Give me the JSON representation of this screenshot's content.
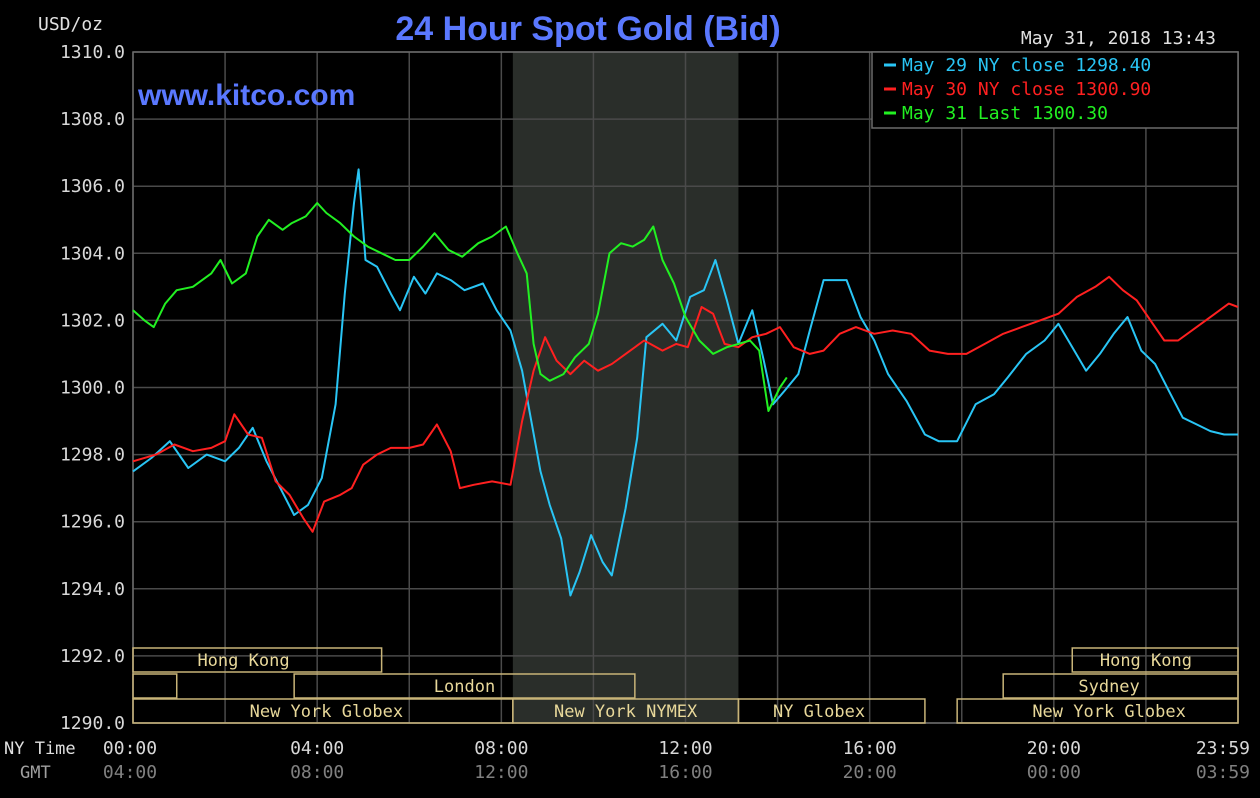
{
  "title": "24 Hour Spot Gold (Bid)",
  "watermark": "www.kitco.com",
  "timestamp": "May 31, 2018 13:43",
  "colors": {
    "background": "#000000",
    "grid": "#4a4a4a",
    "axis_text": "#d8d8d8",
    "gmt_text": "#808080",
    "title": "#5a78ff",
    "session_border": "#c8b478",
    "session_text": "#e8d89a",
    "shade": "#2a2e2a"
  },
  "axes": {
    "y_unit": "USD/oz",
    "x_row1_label": "NY Time",
    "x_row2_label": "GMT",
    "x_ticks_ny": [
      "00:00",
      "04:00",
      "08:00",
      "12:00",
      "16:00",
      "20:00",
      "23:59"
    ],
    "x_ticks_gmt": [
      "04:00",
      "08:00",
      "12:00",
      "16:00",
      "20:00",
      "00:00",
      "03:59"
    ],
    "y_ticks": [
      "1310.0",
      "1308.0",
      "1306.0",
      "1304.0",
      "1302.0",
      "1300.0",
      "1298.0",
      "1296.0",
      "1294.0",
      "1292.0",
      "1290.0"
    ]
  },
  "legend": [
    {
      "text": "May 29 NY close 1298.40",
      "color": "#29c5f5"
    },
    {
      "text": "May 30 NY close 1300.90",
      "color": "#ff2020"
    },
    {
      "text": "May 31 Last 1300.30",
      "color": "#22f022"
    }
  ],
  "sessions": [
    {
      "label": "Hong Kong",
      "row": 0,
      "start": 0,
      "end": 5.4,
      "label_x": 2.4
    },
    {
      "label": "Hong Kong",
      "row": 0,
      "start": 20.4,
      "end": 24,
      "label_x": 22
    },
    {
      "label": "",
      "row": 1,
      "start": 0,
      "end": 0.95,
      "label_x": 0
    },
    {
      "label": "London",
      "row": 1,
      "start": 3.5,
      "end": 10.9,
      "label_x": 7.2
    },
    {
      "label": "Sydney",
      "row": 1,
      "start": 18.9,
      "end": 24,
      "label_x": 21.2
    },
    {
      "label": "New York Globex",
      "row": 2,
      "start": 0,
      "end": 8.25,
      "label_x": 4.2
    },
    {
      "label": "New York NYMEX",
      "row": 2,
      "start": 8.25,
      "end": 13.15,
      "label_x": 10.7
    },
    {
      "label": "NY Globex",
      "row": 2,
      "start": 13.15,
      "end": 17.2,
      "label_x": 14.9
    },
    {
      "label": "New York Globex",
      "row": 2,
      "start": 17.9,
      "end": 24,
      "label_x": 21.2
    }
  ],
  "chart_data": {
    "type": "line",
    "title": "24 Hour Spot Gold (Bid)",
    "xlabel": "NY Time",
    "ylabel": "USD/oz",
    "xlim": [
      0,
      24
    ],
    "ylim": [
      1290,
      1310
    ],
    "grid": true,
    "legend_position": "top-right",
    "shaded_region": [
      8.25,
      13.15
    ],
    "series": [
      {
        "name": "May 29 NY close 1298.40",
        "color": "#29c5f5",
        "points": [
          [
            0,
            1297.5
          ],
          [
            0.4,
            1297.9
          ],
          [
            0.8,
            1298.4
          ],
          [
            1.2,
            1297.6
          ],
          [
            1.6,
            1298.0
          ],
          [
            2,
            1297.8
          ],
          [
            2.3,
            1298.2
          ],
          [
            2.6,
            1298.8
          ],
          [
            2.9,
            1297.8
          ],
          [
            3.2,
            1297.0
          ],
          [
            3.5,
            1296.2
          ],
          [
            3.8,
            1296.5
          ],
          [
            4.1,
            1297.3
          ],
          [
            4.4,
            1299.5
          ],
          [
            4.6,
            1302.8
          ],
          [
            4.8,
            1305.5
          ],
          [
            4.9,
            1306.5
          ],
          [
            5.05,
            1303.8
          ],
          [
            5.3,
            1303.6
          ],
          [
            5.6,
            1302.8
          ],
          [
            5.8,
            1302.3
          ],
          [
            6.1,
            1303.3
          ],
          [
            6.35,
            1302.8
          ],
          [
            6.6,
            1303.4
          ],
          [
            6.9,
            1303.2
          ],
          [
            7.2,
            1302.9
          ],
          [
            7.6,
            1303.1
          ],
          [
            7.9,
            1302.3
          ],
          [
            8.2,
            1301.7
          ],
          [
            8.45,
            1300.5
          ],
          [
            8.65,
            1299.0
          ],
          [
            8.85,
            1297.5
          ],
          [
            9.05,
            1296.5
          ],
          [
            9.3,
            1295.5
          ],
          [
            9.5,
            1293.8
          ],
          [
            9.7,
            1294.5
          ],
          [
            9.95,
            1295.6
          ],
          [
            10.2,
            1294.8
          ],
          [
            10.4,
            1294.4
          ],
          [
            10.7,
            1296.4
          ],
          [
            10.95,
            1298.5
          ],
          [
            11.15,
            1301.5
          ],
          [
            11.5,
            1301.9
          ],
          [
            11.8,
            1301.4
          ],
          [
            12.1,
            1302.7
          ],
          [
            12.4,
            1302.9
          ],
          [
            12.65,
            1303.8
          ],
          [
            12.9,
            1302.6
          ],
          [
            13.15,
            1301.3
          ],
          [
            13.45,
            1302.3
          ],
          [
            13.7,
            1300.8
          ],
          [
            13.9,
            1299.5
          ],
          [
            14.15,
            1299.9
          ],
          [
            14.45,
            1300.4
          ],
          [
            14.7,
            1301.7
          ],
          [
            15,
            1303.2
          ],
          [
            15.5,
            1303.2
          ],
          [
            15.8,
            1302.1
          ],
          [
            16.1,
            1301.4
          ],
          [
            16.4,
            1300.4
          ],
          [
            16.8,
            1299.6
          ],
          [
            17.2,
            1298.6
          ],
          [
            17.5,
            1298.4
          ],
          [
            17.9,
            1298.4
          ],
          [
            18.3,
            1299.5
          ],
          [
            18.7,
            1299.8
          ],
          [
            19.0,
            1300.3
          ],
          [
            19.4,
            1301.0
          ],
          [
            19.8,
            1301.4
          ],
          [
            20.1,
            1301.9
          ],
          [
            20.4,
            1301.2
          ],
          [
            20.7,
            1300.5
          ],
          [
            21.0,
            1301.0
          ],
          [
            21.3,
            1301.6
          ],
          [
            21.6,
            1302.1
          ],
          [
            21.9,
            1301.1
          ],
          [
            22.2,
            1300.7
          ],
          [
            22.5,
            1299.9
          ],
          [
            22.8,
            1299.1
          ],
          [
            23.1,
            1298.9
          ],
          [
            23.4,
            1298.7
          ],
          [
            23.7,
            1298.6
          ],
          [
            24.0,
            1298.6
          ]
        ]
      },
      {
        "name": "May 30 NY close 1300.90",
        "color": "#ff2020",
        "points": [
          [
            0,
            1297.8
          ],
          [
            0.5,
            1298.0
          ],
          [
            0.9,
            1298.3
          ],
          [
            1.3,
            1298.1
          ],
          [
            1.7,
            1298.2
          ],
          [
            2.0,
            1298.4
          ],
          [
            2.2,
            1299.2
          ],
          [
            2.5,
            1298.6
          ],
          [
            2.8,
            1298.5
          ],
          [
            3.1,
            1297.2
          ],
          [
            3.4,
            1296.8
          ],
          [
            3.7,
            1296.1
          ],
          [
            3.9,
            1295.7
          ],
          [
            4.15,
            1296.6
          ],
          [
            4.5,
            1296.8
          ],
          [
            4.75,
            1297.0
          ],
          [
            5.0,
            1297.7
          ],
          [
            5.3,
            1298.0
          ],
          [
            5.6,
            1298.2
          ],
          [
            6.0,
            1298.2
          ],
          [
            6.3,
            1298.3
          ],
          [
            6.6,
            1298.9
          ],
          [
            6.9,
            1298.1
          ],
          [
            7.1,
            1297.0
          ],
          [
            7.4,
            1297.1
          ],
          [
            7.8,
            1297.2
          ],
          [
            8.2,
            1297.1
          ],
          [
            8.45,
            1299.0
          ],
          [
            8.7,
            1300.5
          ],
          [
            8.95,
            1301.5
          ],
          [
            9.2,
            1300.8
          ],
          [
            9.5,
            1300.4
          ],
          [
            9.8,
            1300.8
          ],
          [
            10.1,
            1300.5
          ],
          [
            10.4,
            1300.7
          ],
          [
            10.8,
            1301.1
          ],
          [
            11.1,
            1301.4
          ],
          [
            11.5,
            1301.1
          ],
          [
            11.8,
            1301.3
          ],
          [
            12.05,
            1301.2
          ],
          [
            12.35,
            1302.4
          ],
          [
            12.6,
            1302.2
          ],
          [
            12.85,
            1301.3
          ],
          [
            13.15,
            1301.2
          ],
          [
            13.45,
            1301.5
          ],
          [
            13.75,
            1301.6
          ],
          [
            14.05,
            1301.8
          ],
          [
            14.35,
            1301.2
          ],
          [
            14.7,
            1301.0
          ],
          [
            15.0,
            1301.1
          ],
          [
            15.35,
            1301.6
          ],
          [
            15.7,
            1301.8
          ],
          [
            16.1,
            1301.6
          ],
          [
            16.5,
            1301.7
          ],
          [
            16.9,
            1301.6
          ],
          [
            17.3,
            1301.1
          ],
          [
            17.7,
            1301.0
          ],
          [
            18.1,
            1301.0
          ],
          [
            18.5,
            1301.3
          ],
          [
            18.9,
            1301.6
          ],
          [
            19.3,
            1301.8
          ],
          [
            19.7,
            1302.0
          ],
          [
            20.1,
            1302.2
          ],
          [
            20.5,
            1302.7
          ],
          [
            20.9,
            1303.0
          ],
          [
            21.2,
            1303.3
          ],
          [
            21.5,
            1302.9
          ],
          [
            21.8,
            1302.6
          ],
          [
            22.1,
            1302.0
          ],
          [
            22.4,
            1301.4
          ],
          [
            22.7,
            1301.4
          ],
          [
            23.1,
            1301.8
          ],
          [
            23.5,
            1302.2
          ],
          [
            23.8,
            1302.5
          ],
          [
            24.0,
            1302.4
          ]
        ]
      },
      {
        "name": "May 31 Last 1300.30",
        "color": "#22f022",
        "points": [
          [
            0,
            1302.3
          ],
          [
            0.25,
            1302.0
          ],
          [
            0.45,
            1301.8
          ],
          [
            0.7,
            1302.5
          ],
          [
            0.95,
            1302.9
          ],
          [
            1.3,
            1303.0
          ],
          [
            1.7,
            1303.4
          ],
          [
            1.9,
            1303.8
          ],
          [
            2.15,
            1303.1
          ],
          [
            2.45,
            1303.4
          ],
          [
            2.7,
            1304.5
          ],
          [
            2.95,
            1305.0
          ],
          [
            3.25,
            1304.7
          ],
          [
            3.45,
            1304.9
          ],
          [
            3.75,
            1305.1
          ],
          [
            4.0,
            1305.5
          ],
          [
            4.2,
            1305.2
          ],
          [
            4.5,
            1304.9
          ],
          [
            4.8,
            1304.5
          ],
          [
            5.1,
            1304.2
          ],
          [
            5.4,
            1304.0
          ],
          [
            5.7,
            1303.8
          ],
          [
            6.0,
            1303.8
          ],
          [
            6.3,
            1304.2
          ],
          [
            6.55,
            1304.6
          ],
          [
            6.85,
            1304.1
          ],
          [
            7.15,
            1303.9
          ],
          [
            7.5,
            1304.3
          ],
          [
            7.8,
            1304.5
          ],
          [
            8.1,
            1304.8
          ],
          [
            8.35,
            1304.0
          ],
          [
            8.55,
            1303.4
          ],
          [
            8.7,
            1301.3
          ],
          [
            8.85,
            1300.4
          ],
          [
            9.05,
            1300.2
          ],
          [
            9.35,
            1300.4
          ],
          [
            9.6,
            1300.9
          ],
          [
            9.9,
            1301.3
          ],
          [
            10.1,
            1302.2
          ],
          [
            10.35,
            1304.0
          ],
          [
            10.6,
            1304.3
          ],
          [
            10.85,
            1304.2
          ],
          [
            11.1,
            1304.4
          ],
          [
            11.3,
            1304.8
          ],
          [
            11.5,
            1303.8
          ],
          [
            11.75,
            1303.1
          ],
          [
            12.0,
            1302.1
          ],
          [
            12.3,
            1301.4
          ],
          [
            12.6,
            1301.0
          ],
          [
            12.9,
            1301.2
          ],
          [
            13.15,
            1301.3
          ],
          [
            13.4,
            1301.4
          ],
          [
            13.6,
            1301.1
          ],
          [
            13.8,
            1299.3
          ],
          [
            14.05,
            1300.0
          ],
          [
            14.2,
            1300.3
          ]
        ]
      }
    ]
  }
}
